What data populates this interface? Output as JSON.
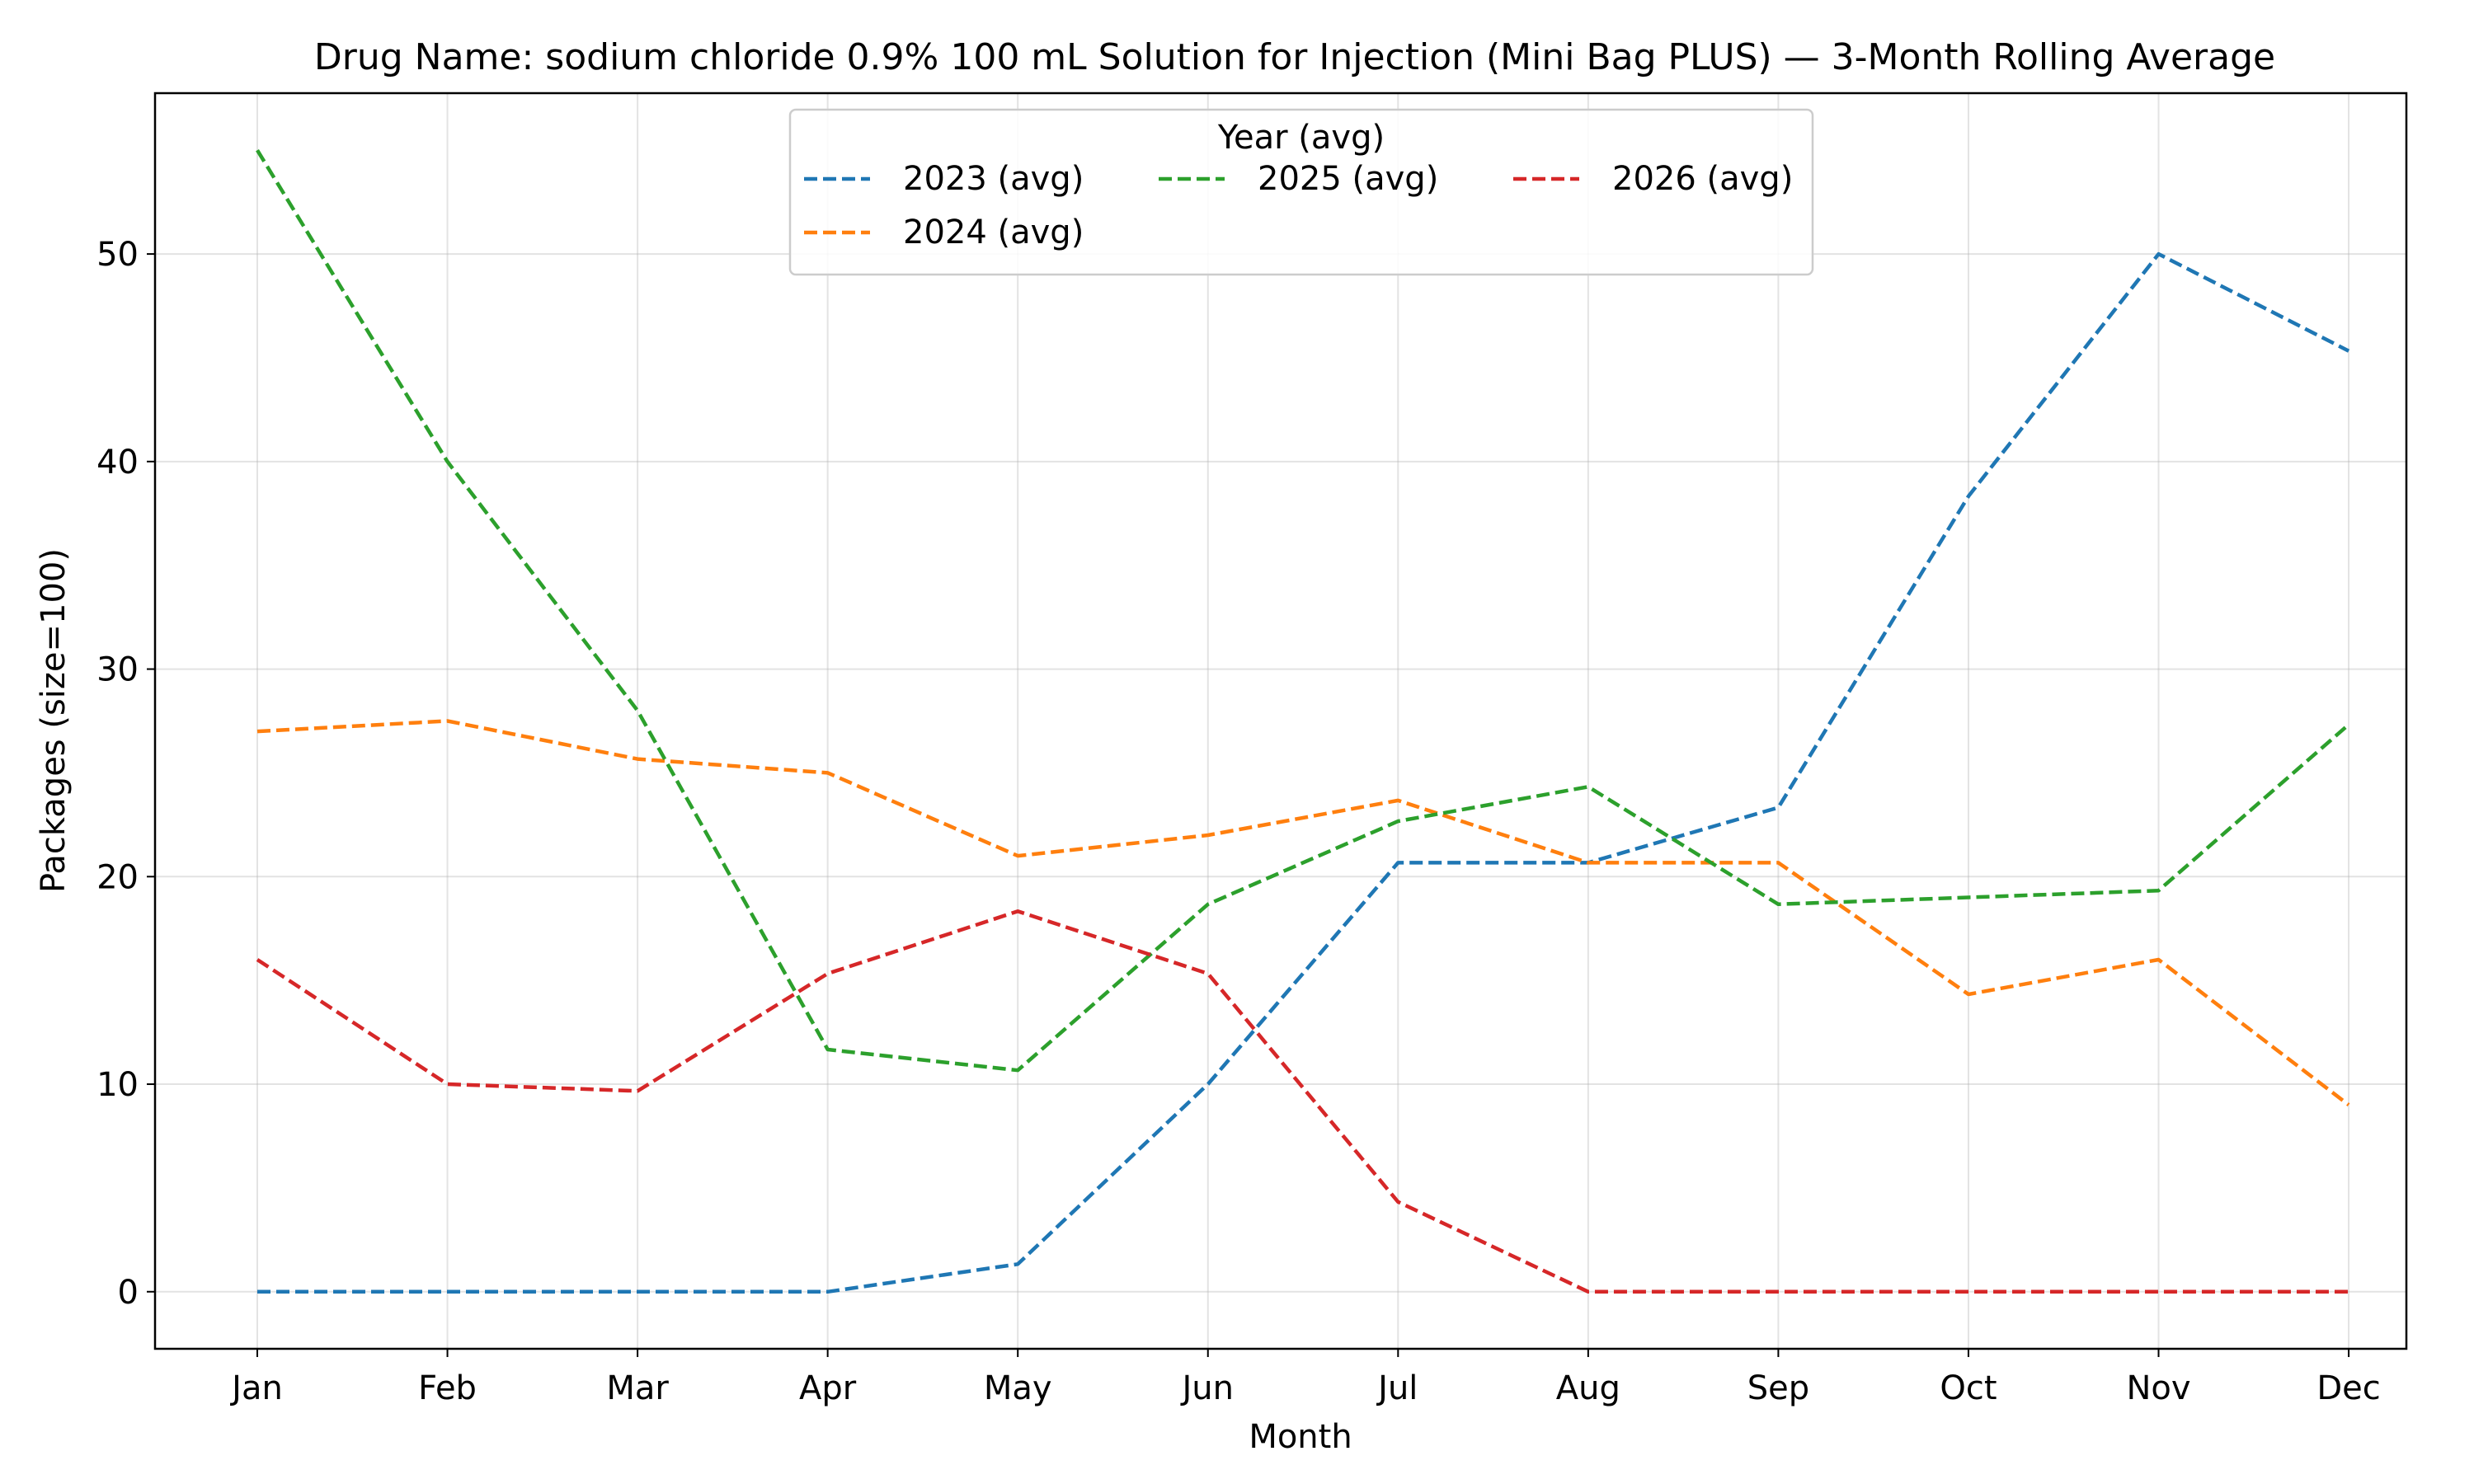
{
  "chart_data": {
    "type": "line",
    "title": "Drug Name: sodium chloride 0.9% 100 mL Solution for Injection (Mini Bag PLUS) — 3-Month Rolling Average",
    "xlabel": "Month",
    "ylabel": "Packages (size=100)",
    "categories": [
      "Jan",
      "Feb",
      "Mar",
      "Apr",
      "May",
      "Jun",
      "Jul",
      "Aug",
      "Sep",
      "Oct",
      "Nov",
      "Dec"
    ],
    "ylim": [
      -2.75,
      57.75
    ],
    "yticks": [
      0,
      10,
      20,
      30,
      40,
      50
    ],
    "grid": true,
    "legend": {
      "title": "Year (avg)",
      "placement": "top-center",
      "columns": 3
    },
    "series": [
      {
        "name": "2023 (avg)",
        "color": "#1f77b4",
        "values": [
          0,
          0,
          0,
          0,
          1.33,
          10,
          20.67,
          20.67,
          23.33,
          38.33,
          50,
          45.33
        ]
      },
      {
        "name": "2024 (avg)",
        "color": "#ff7f0e",
        "values": [
          27,
          27.5,
          25.67,
          25,
          21,
          22,
          23.67,
          20.67,
          20.67,
          14.33,
          16,
          9
        ]
      },
      {
        "name": "2025 (avg)",
        "color": "#2ca02c",
        "values": [
          55,
          40,
          28,
          11.67,
          10.67,
          18.67,
          22.67,
          24.33,
          18.67,
          19,
          19.33,
          27.33
        ]
      },
      {
        "name": "2026 (avg)",
        "color": "#d62728",
        "values": [
          16,
          10,
          9.67,
          15.33,
          18.33,
          15.33,
          4.33,
          0,
          0,
          0,
          0,
          0
        ]
      }
    ]
  }
}
